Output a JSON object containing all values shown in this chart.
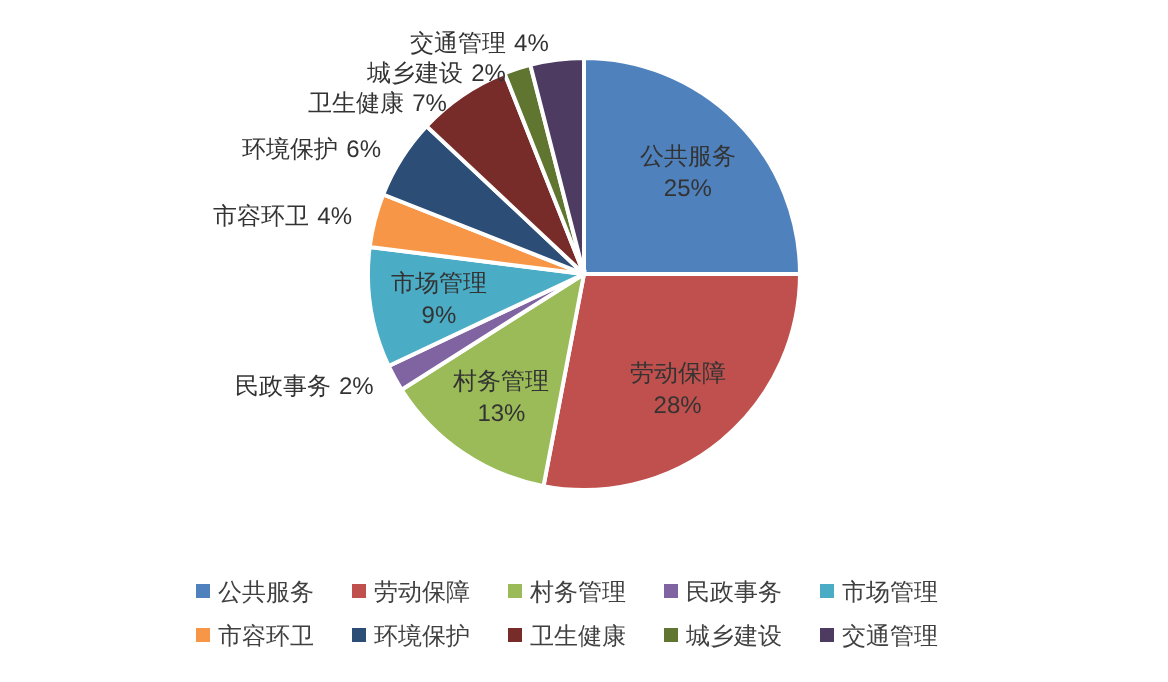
{
  "chart_data": {
    "type": "pie",
    "categories": [
      "公共服务",
      "劳动保障",
      "村务管理",
      "民政事务",
      "市场管理",
      "市容环卫",
      "环境保护",
      "卫生健康",
      "城乡建设",
      "交通管理"
    ],
    "values": [
      25,
      28,
      13,
      2,
      9,
      4,
      6,
      7,
      2,
      4
    ],
    "value_labels": [
      "25%",
      "28%",
      "13%",
      "2%",
      "9%",
      "4%",
      "6%",
      "7%",
      "2%",
      "4%"
    ],
    "colors": [
      "#4f81bd",
      "#c0504d",
      "#9bbb59",
      "#8064a2",
      "#4bacc6",
      "#f79646",
      "#2c4d75",
      "#772c2a",
      "#5f7530",
      "#4d3b62"
    ],
    "legend": "bottom"
  }
}
